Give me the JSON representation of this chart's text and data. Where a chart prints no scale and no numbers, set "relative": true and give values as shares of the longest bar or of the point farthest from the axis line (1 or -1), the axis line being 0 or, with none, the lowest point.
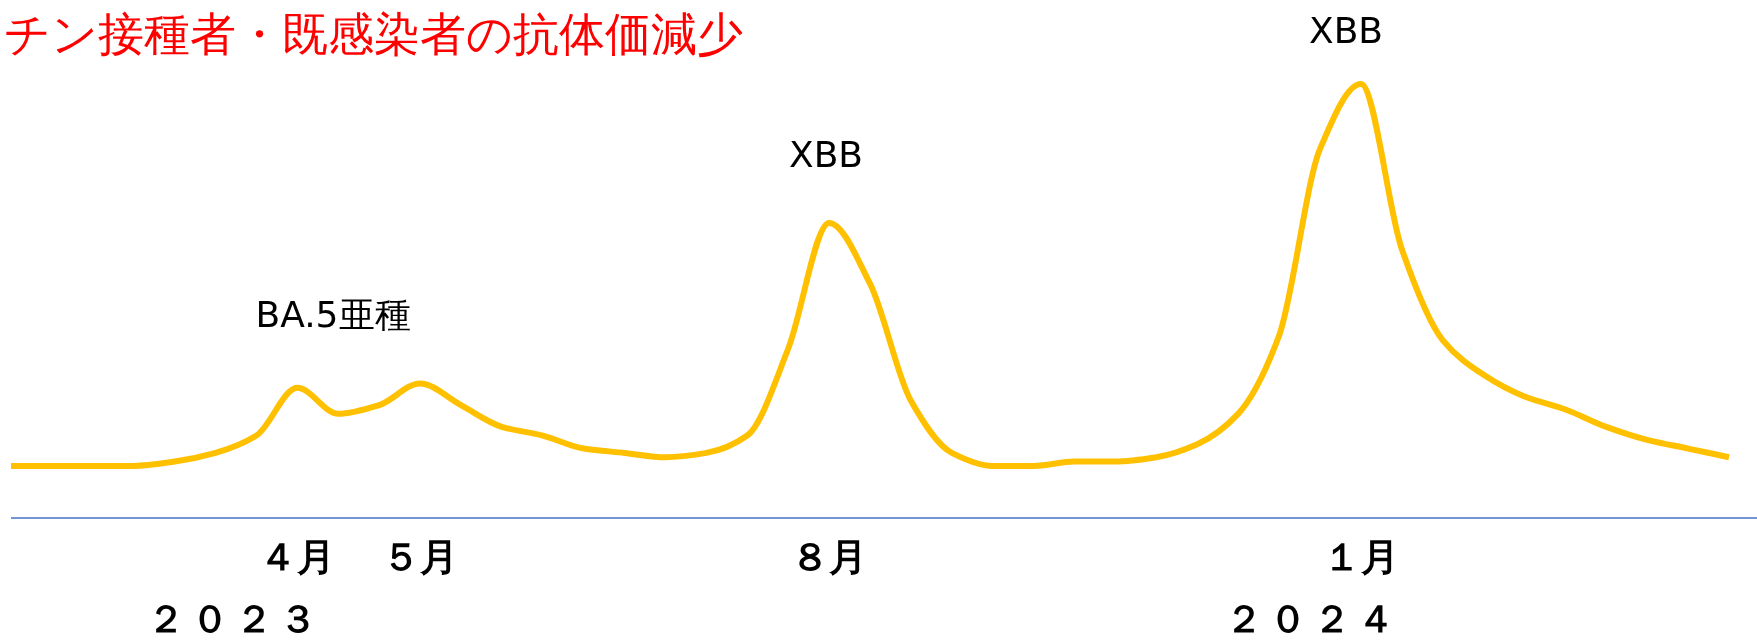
{
  "chart_data": {
    "type": "line",
    "title": "チン接種者・既感染者の抗体価減少",
    "relative": true,
    "categories": [
      null,
      null,
      null,
      null,
      null,
      null,
      null,
      "４月",
      null,
      null,
      "５月",
      null,
      null,
      null,
      null,
      null,
      null,
      null,
      null,
      null,
      "８月",
      null,
      null,
      null,
      null,
      null,
      null,
      null,
      null,
      null,
      null,
      null,
      null,
      "１月",
      null,
      null,
      null,
      null,
      null,
      null,
      null,
      null,
      null
    ],
    "series": [
      {
        "color": "#ffc000",
        "values": [
          0.12,
          0.12,
          0.12,
          0.12,
          0.13,
          0.15,
          0.19,
          0.3,
          0.24,
          0.26,
          0.31,
          0.26,
          0.21,
          0.19,
          0.16,
          0.15,
          0.14,
          0.15,
          0.19,
          0.39,
          0.68,
          0.54,
          0.27,
          0.15,
          0.12,
          0.12,
          0.13,
          0.13,
          0.14,
          0.17,
          0.24,
          0.42,
          0.85,
          1,
          0.62,
          0.41,
          0.33,
          0.28,
          0.25,
          0.21,
          0.18,
          0.16,
          0.14
        ]
      }
    ],
    "annotations": [
      "BA.5亜種",
      "XBB",
      "XBB",
      "２０２３",
      "２０２４"
    ]
  }
}
